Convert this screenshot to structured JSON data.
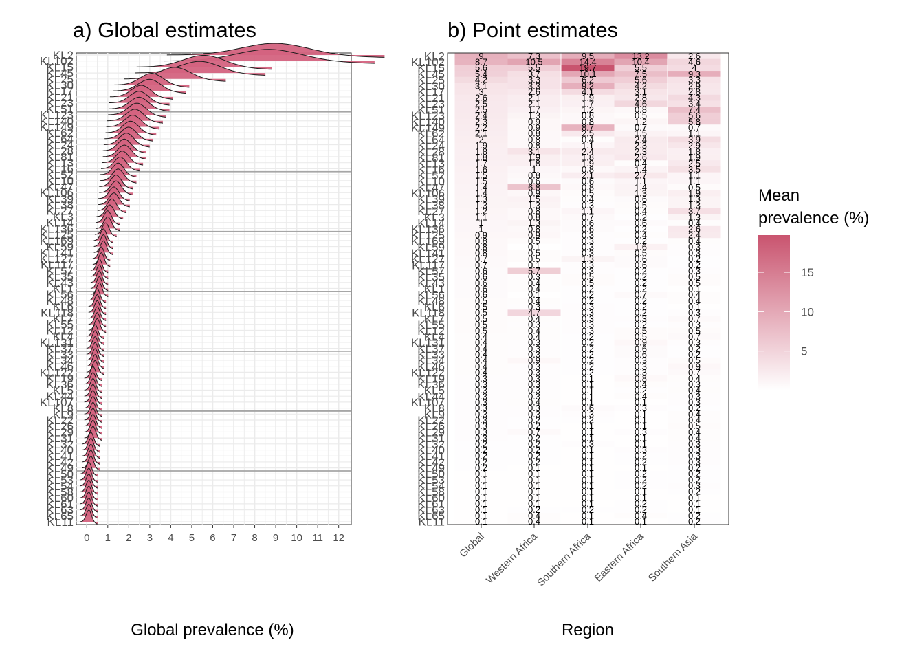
{
  "chart_data": [
    {
      "type": "ridgeline",
      "title": "a) Global estimates",
      "xlabel": "Global prevalence (%)",
      "ylabel": "",
      "xlim": [
        -0.5,
        12.6
      ],
      "xticks": [
        0,
        1,
        2,
        3,
        4,
        5,
        6,
        7,
        8,
        9,
        10,
        11,
        12
      ],
      "grid": true,
      "fill_color": "#d4637f",
      "reference_lines_every_rows": 10,
      "categories": [
        "KL2",
        "KL102",
        "KL15",
        "KL45",
        "KL25",
        "KL30",
        "KL17",
        "KL21",
        "KL23",
        "KL51",
        "KL123",
        "KL140",
        "KL149",
        "KL62",
        "KL64",
        "KL24",
        "KL28",
        "KL81",
        "KL13",
        "KL16",
        "KL52",
        "KL10",
        "KL47",
        "KL106",
        "KL39",
        "KL38",
        "KL27",
        "KL3",
        "KL14",
        "KL136",
        "KL125",
        "KL169",
        "KL59",
        "KL141",
        "KL127",
        "KL117",
        "KL57",
        "KL35",
        "KL43",
        "KL1",
        "KL56",
        "KL48",
        "KL6",
        "KL118",
        "KL7",
        "KL55",
        "KL12",
        "KL4",
        "KL131",
        "KL37",
        "KL33",
        "KL34",
        "KL46",
        "KL122",
        "KL19",
        "KL36",
        "KL5",
        "KL44",
        "KL107",
        "KL8",
        "KL9",
        "KL22",
        "KL26",
        "KL29",
        "KL31",
        "KL32",
        "KL40",
        "KL41",
        "KL42",
        "KL49",
        "KL50",
        "KL53",
        "KL54",
        "KL58",
        "KL60",
        "KL61",
        "KL63",
        "KL65",
        "KL11"
      ],
      "values": [
        9.0,
        8.7,
        5.6,
        5.4,
        4.2,
        3.1,
        3.0,
        2.6,
        2.5,
        2.5,
        2.4,
        2.3,
        2.2,
        2.1,
        2.0,
        1.9,
        1.8,
        1.8,
        1.7,
        1.6,
        1.5,
        1.5,
        1.4,
        1.4,
        1.3,
        1.3,
        1.2,
        1.1,
        1.0,
        1.0,
        0.9,
        0.8,
        0.8,
        0.8,
        0.7,
        0.7,
        0.6,
        0.6,
        0.6,
        0.6,
        0.6,
        0.5,
        0.5,
        0.5,
        0.5,
        0.5,
        0.5,
        0.4,
        0.4,
        0.4,
        0.4,
        0.4,
        0.4,
        0.4,
        0.3,
        0.3,
        0.3,
        0.3,
        0.3,
        0.3,
        0.3,
        0.3,
        0.3,
        0.3,
        0.3,
        0.2,
        0.2,
        0.2,
        0.2,
        0.2,
        0.1,
        0.1,
        0.1,
        0.1,
        0.1,
        0.1,
        0.1,
        0.1,
        0.1
      ]
    },
    {
      "type": "heatmap",
      "title": "b) Point estimates",
      "xlabel": "Region",
      "ylabel": "",
      "columns": [
        "Global",
        "Western Africa",
        "Southern Africa",
        "Eastern Africa",
        "Southern Asia"
      ],
      "legend_title": "Mean prevalence (%)",
      "legend_ticks": [
        5,
        10,
        15
      ],
      "color_low": "#ffffff",
      "color_high": "#c9546f",
      "color_range": [
        0,
        19.7
      ],
      "rows": [
        "KL2",
        "KL102",
        "KL15",
        "KL45",
        "KL25",
        "KL30",
        "KL17",
        "KL21",
        "KL23",
        "KL51",
        "KL123",
        "KL140",
        "KL149",
        "KL62",
        "KL64",
        "KL24",
        "KL28",
        "KL81",
        "KL13",
        "KL16",
        "KL52",
        "KL10",
        "KL47",
        "KL106",
        "KL39",
        "KL38",
        "KL27",
        "KL3",
        "KL14",
        "KL136",
        "KL125",
        "KL169",
        "KL59",
        "KL141",
        "KL127",
        "KL117",
        "KL57",
        "KL35",
        "KL43",
        "KL1",
        "KL56",
        "KL48",
        "KL6",
        "KL118",
        "KL7",
        "KL55",
        "KL12",
        "KL4",
        "KL131",
        "KL37",
        "KL33",
        "KL34",
        "KL46",
        "KL122",
        "KL19",
        "KL36",
        "KL5",
        "KL44",
        "KL107",
        "KL8",
        "KL9",
        "KL22",
        "KL26",
        "KL29",
        "KL31",
        "KL32",
        "KL40",
        "KL41",
        "KL42",
        "KL49",
        "KL50",
        "KL53",
        "KL54",
        "KL58",
        "KL60",
        "KL61",
        "KL63",
        "KL65",
        "KL11"
      ],
      "values": [
        [
          9,
          7.3,
          9.5,
          13.2,
          2.6
        ],
        [
          8.7,
          10.5,
          14.4,
          10.4,
          4.6
        ],
        [
          5.6,
          5.5,
          19.7,
          5.5,
          4.0
        ],
        [
          5.4,
          3.7,
          10.1,
          7.5,
          9.3
        ],
        [
          4.2,
          3.3,
          6.2,
          5.6,
          3.3
        ],
        [
          3.1,
          3.3,
          9.2,
          4.2,
          2.9
        ],
        [
          3.0,
          2.6,
          4.1,
          3.1,
          2.8
        ],
        [
          2.6,
          2.1,
          1.9,
          2.8,
          4.3
        ],
        [
          2.5,
          2.1,
          1.7,
          4.6,
          3.4
        ],
        [
          2.5,
          1.7,
          1.2,
          0.8,
          7.4
        ],
        [
          2.4,
          1.3,
          0.8,
          0.5,
          5.6
        ],
        [
          2.3,
          0.9,
          0.8,
          1.2,
          5.8
        ],
        [
          2.2,
          0.9,
          8.7,
          0.7,
          0.7
        ],
        [
          2.1,
          0.8,
          2.5,
          1.5,
          1.1
        ],
        [
          2.0,
          0.8,
          0.4,
          2.4,
          3.9
        ],
        [
          1.9,
          0.8,
          1.1,
          2.3,
          2.9
        ],
        [
          1.8,
          3.1,
          2.4,
          2.3,
          1.8
        ],
        [
          1.8,
          1.9,
          1.8,
          2.6,
          1.9
        ],
        [
          1.7,
          1.8,
          1.9,
          0.4,
          2.5
        ],
        [
          1.6,
          1.0,
          0.8,
          1.4,
          3.5
        ],
        [
          1.5,
          0.8,
          2.1,
          2.7,
          1.1
        ],
        [
          1.5,
          0.6,
          0.6,
          1.1,
          1.1
        ],
        [
          1.4,
          6.8,
          0.8,
          1.4,
          0.5
        ],
        [
          1.4,
          0.9,
          0.5,
          1.3,
          1.9
        ],
        [
          1.3,
          1.5,
          0.4,
          0.6,
          1.3
        ],
        [
          1.3,
          1.3,
          0.3,
          0.5,
          1.3
        ],
        [
          1.2,
          0.8,
          1.1,
          0.4,
          3.7
        ],
        [
          1.1,
          0.8,
          0.7,
          0.2,
          1.3
        ],
        [
          1.0,
          1.3,
          0.6,
          0.6,
          0.4
        ],
        [
          1.0,
          0.8,
          0.6,
          0.2,
          2.6
        ],
        [
          0.9,
          0.9,
          0.3,
          0.4,
          2.4
        ],
        [
          0.8,
          0.5,
          0.3,
          0.2,
          0.4
        ],
        [
          0.8,
          0.1,
          0.3,
          1.6,
          0.3
        ],
        [
          0.8,
          0.5,
          0.3,
          0.5,
          0.3
        ],
        [
          0.7,
          0.5,
          1.3,
          0.6,
          0.2
        ],
        [
          0.7,
          0.1,
          0.3,
          0.6,
          0.2
        ],
        [
          0.6,
          5.7,
          0.3,
          0.2,
          0.3
        ],
        [
          0.6,
          0.3,
          0.5,
          0.2,
          0.5
        ],
        [
          0.6,
          0.4,
          0.5,
          0.2,
          0.5
        ],
        [
          0.6,
          0.4,
          0.2,
          0.2,
          0.1
        ],
        [
          0.6,
          0.1,
          0.2,
          0.7,
          0.4
        ],
        [
          0.5,
          0.4,
          0.2,
          0.2,
          0.4
        ],
        [
          0.5,
          0.3,
          0.3,
          0.2,
          0.1
        ],
        [
          0.5,
          4.7,
          0.3,
          0.2,
          0.3
        ],
        [
          0.5,
          0.4,
          0.3,
          0.3,
          0.7
        ],
        [
          0.5,
          0.3,
          0.3,
          0.2,
          0.3
        ],
        [
          0.5,
          0.4,
          0.3,
          0.5,
          0.5
        ],
        [
          0.4,
          0.4,
          0.2,
          0.5,
          0.7
        ],
        [
          0.4,
          0.3,
          0.2,
          0.9,
          0.3
        ],
        [
          0.4,
          0.3,
          0.2,
          0.6,
          0.2
        ],
        [
          0.4,
          0.3,
          0.2,
          0.6,
          0.2
        ],
        [
          0.4,
          0.9,
          0.2,
          0.3,
          0.5
        ],
        [
          0.4,
          0.3,
          0.2,
          0.3,
          0.9
        ],
        [
          0.4,
          0.3,
          0.2,
          0.3,
          0.7
        ],
        [
          0.3,
          0.3,
          0.1,
          0.8,
          0.4
        ],
        [
          0.3,
          0.3,
          0.1,
          0.4,
          0.3
        ],
        [
          0.3,
          0.3,
          0.1,
          0.2,
          0.4
        ],
        [
          0.3,
          0.3,
          0.1,
          0.4,
          0.3
        ],
        [
          0.3,
          0.4,
          0.1,
          0.1,
          0.3
        ],
        [
          0.3,
          0.3,
          0.6,
          0.3,
          0.2
        ],
        [
          0.3,
          0.3,
          0.3,
          0.1,
          0.4
        ],
        [
          0.3,
          0.2,
          0.2,
          0.1,
          0.4
        ],
        [
          0.3,
          0.2,
          0.1,
          0.1,
          0.5
        ],
        [
          0.3,
          0.7,
          0.1,
          0.3,
          0.4
        ],
        [
          0.3,
          0.2,
          0.1,
          0.1,
          0.4
        ],
        [
          0.2,
          0.2,
          0.3,
          0.1,
          0.3
        ],
        [
          0.2,
          0.2,
          0.1,
          0.3,
          0.3
        ],
        [
          0.2,
          0.2,
          0.1,
          0.2,
          0.3
        ],
        [
          0.2,
          0.2,
          0.1,
          0.2,
          0.3
        ],
        [
          0.2,
          0.1,
          0.1,
          0.1,
          0.2
        ],
        [
          0.1,
          0.1,
          0.1,
          0.2,
          0.2
        ],
        [
          0.1,
          0.1,
          0.1,
          0.2,
          0.2
        ],
        [
          0.1,
          0.1,
          0.1,
          0.2,
          0.3
        ],
        [
          0.1,
          0.1,
          0.1,
          0.1,
          0.2
        ],
        [
          0.1,
          0.1,
          0.1,
          0.1,
          0.1
        ],
        [
          0.1,
          0.1,
          0.1,
          0.2,
          0.1
        ],
        [
          0.1,
          0.2,
          0.2,
          0.2,
          0.1
        ],
        [
          0.1,
          0.4,
          0.1,
          0.4,
          0.2
        ],
        [
          0.1,
          0.4,
          0.1,
          0.1,
          0.2
        ]
      ]
    }
  ]
}
